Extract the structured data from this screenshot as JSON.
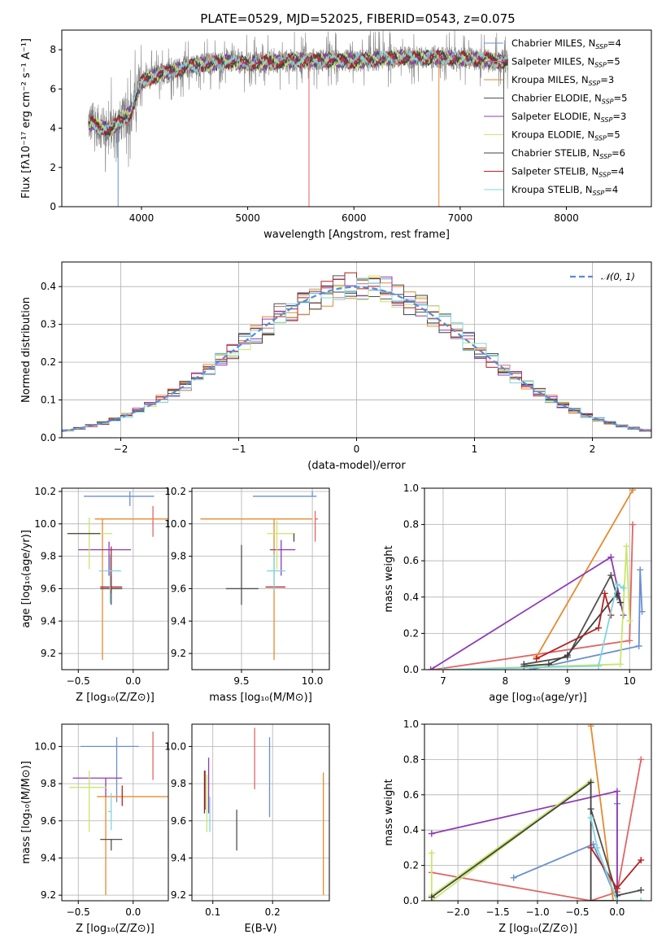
{
  "figure": {
    "title": "PLATE=0529, MJD=52025, FIBERID=0543, z=0.075"
  },
  "legend": [
    {
      "label": "Chabrier MILES, N",
      "sub": "SSP",
      "suffix": "=4",
      "color": "#6b8fd1"
    },
    {
      "label": "Salpeter MILES, N",
      "sub": "SSP",
      "suffix": "=5",
      "color": "#e06666"
    },
    {
      "label": "Kroupa MILES, N",
      "sub": "SSP",
      "suffix": "=3",
      "color": "#e68a2e"
    },
    {
      "label": "Chabrier ELODIE, N",
      "sub": "SSP",
      "suffix": "=5",
      "color": "#505050"
    },
    {
      "label": "Salpeter ELODIE, N",
      "sub": "SSP",
      "suffix": "=3",
      "color": "#8e3bb5"
    },
    {
      "label": "Kroupa ELODIE, N",
      "sub": "SSP",
      "suffix": "=5",
      "color": "#c8e66e"
    },
    {
      "label": "Chabrier STELIB, N",
      "sub": "SSP",
      "suffix": "=6",
      "color": "#404040"
    },
    {
      "label": "Salpeter STELIB, N",
      "sub": "SSP",
      "suffix": "=4",
      "color": "#b22222"
    },
    {
      "label": "Kroupa STELIB, N",
      "sub": "SSP",
      "suffix": "=4",
      "color": "#7fd6e0"
    }
  ],
  "chart_data": [
    {
      "id": "spectrum",
      "type": "line",
      "xlabel": "wavelength [Angstrom, rest frame]",
      "ylabel": "Flux [fλ10⁻¹⁷ erg cm⁻² s⁻¹ A⁻¹]",
      "xlim": [
        3250,
        8800
      ],
      "ylim": [
        0,
        9
      ],
      "xticks": [
        4000,
        5000,
        6000,
        7000,
        8000
      ],
      "yticks": [
        0,
        2,
        4,
        6,
        8
      ],
      "data_range": [
        3500,
        7450
      ],
      "continuum_knots": {
        "x": [
          3500,
          3700,
          3900,
          4000,
          4200,
          4500,
          4800,
          5000,
          5300,
          5600,
          6000,
          6400,
          6800,
          7200,
          7450
        ],
        "y": [
          4.3,
          3.9,
          4.8,
          6.4,
          6.8,
          7.2,
          7.4,
          7.3,
          7.4,
          7.5,
          7.4,
          7.6,
          7.6,
          7.5,
          7.4
        ]
      },
      "spikes": [
        {
          "x": 3780,
          "y": 0
        },
        {
          "x": 5577,
          "y": 0
        },
        {
          "x": 6800,
          "y": 0
        },
        {
          "x": 7410,
          "y": 0
        }
      ],
      "grid": false
    },
    {
      "id": "residual-histogram",
      "type": "step",
      "xlabel": "(data-model)/error",
      "ylabel": "Normed distribution",
      "xlim": [
        -2.5,
        2.5
      ],
      "ylim": [
        0,
        0.465
      ],
      "xticks": [
        -2,
        -1,
        0,
        1,
        2
      ],
      "yticks": [
        0.0,
        0.1,
        0.2,
        0.3,
        0.4
      ],
      "bin_width": 0.1,
      "reference_label": "𝒩(0, 1)",
      "reference_color": "#5b8ad6",
      "grid": true,
      "legend_position": "upper-right"
    },
    {
      "id": "age-vs-Z",
      "type": "errorbar",
      "xlabel": "Z [log₁₀(Z/Z⊙)]",
      "ylabel": "age  [log₁₀(age/yr)]",
      "xlim": [
        -0.65,
        0.32
      ],
      "ylim": [
        9.1,
        10.22
      ],
      "xticks": [
        -0.5,
        0.0
      ],
      "yticks": [
        9.2,
        9.4,
        9.6,
        9.8,
        10.0,
        10.2
      ],
      "points": [
        {
          "series": 0,
          "x": -0.03,
          "y": 10.17,
          "xerr": [
            0.42,
            0.22
          ],
          "yerr": [
            0.06,
            0.03
          ]
        },
        {
          "series": 1,
          "x": 0.18,
          "y": 10.06,
          "xerr": [
            0.0,
            0.0
          ],
          "yerr": [
            0.14,
            0.05
          ]
        },
        {
          "series": 2,
          "x": -0.28,
          "y": 10.03,
          "xerr": [
            0.07,
            0.6
          ],
          "yerr": [
            0.87,
            0.0
          ]
        },
        {
          "series": 3,
          "x": -0.2,
          "y": 9.6,
          "xerr": [
            0.1,
            0.1
          ],
          "yerr": [
            0.1,
            0.08
          ]
        },
        {
          "series": 4,
          "x": -0.22,
          "y": 9.84,
          "xerr": [
            0.28,
            0.2
          ],
          "yerr": [
            0.16,
            0.05
          ]
        },
        {
          "series": 5,
          "x": -0.4,
          "y": 9.94,
          "xerr": [
            0.18,
            0.21
          ],
          "yerr": [
            0.22,
            0.1
          ]
        },
        {
          "series": 6,
          "x": -0.3,
          "y": 9.94,
          "xerr": [
            0.3,
            0.0
          ],
          "yerr": [
            0.0,
            0.0
          ]
        },
        {
          "series": 7,
          "x": -0.2,
          "y": 9.61,
          "xerr": [
            0.1,
            0.1
          ],
          "yerr": [
            0.04,
            0.25
          ]
        },
        {
          "series": 8,
          "x": -0.21,
          "y": 9.71,
          "xerr": [
            0.1,
            0.1
          ],
          "yerr": [
            0.2,
            0.1
          ]
        }
      ],
      "grid": true
    },
    {
      "id": "age-vs-mass",
      "type": "errorbar",
      "xlabel": "mass [log₁₀(M/M⊙)]",
      "ylabel": "",
      "xlim": [
        9.15,
        10.12
      ],
      "ylim": [
        9.1,
        10.22
      ],
      "xticks": [
        9.5,
        10.0
      ],
      "yticks": [
        9.2,
        9.4,
        9.6,
        9.8,
        10.0,
        10.2
      ],
      "points": [
        {
          "series": 0,
          "x": 10.0,
          "y": 10.17,
          "xerr": [
            0.42,
            0.03
          ],
          "yerr": [
            0.0,
            0.03
          ]
        },
        {
          "series": 1,
          "x": 10.02,
          "y": 10.03,
          "xerr": [
            0.0,
            0.02
          ],
          "yerr": [
            0.14,
            0.05
          ]
        },
        {
          "series": 2,
          "x": 9.73,
          "y": 10.03,
          "xerr": [
            0.52,
            0.27
          ],
          "yerr": [
            0.87,
            0.0
          ]
        },
        {
          "series": 3,
          "x": 9.5,
          "y": 9.6,
          "xerr": [
            0.11,
            0.12
          ],
          "yerr": [
            0.1,
            0.27
          ]
        },
        {
          "series": 4,
          "x": 9.78,
          "y": 9.84,
          "xerr": [
            0.08,
            0.1
          ],
          "yerr": [
            0.16,
            0.06
          ]
        },
        {
          "series": 5,
          "x": 9.75,
          "y": 9.94,
          "xerr": [
            0.07,
            0.13
          ],
          "yerr": [
            0.22,
            0.08
          ]
        },
        {
          "series": 6,
          "x": 9.87,
          "y": 9.94,
          "xerr": [
            0.0,
            0.0
          ],
          "yerr": [
            0.05,
            0.0
          ]
        },
        {
          "series": 7,
          "x": 9.73,
          "y": 9.61,
          "xerr": [
            0.06,
            0.08
          ],
          "yerr": [
            0.0,
            0.0
          ]
        },
        {
          "series": 8,
          "x": 9.73,
          "y": 9.71,
          "xerr": [
            0.05,
            0.08
          ],
          "yerr": [
            0.12,
            0.1
          ]
        }
      ],
      "grid": true
    },
    {
      "id": "mass-weight-vs-age",
      "type": "line",
      "xlabel": "age  [log₁₀(age/yr)]",
      "ylabel": "mass weight",
      "xlim": [
        6.7,
        10.35
      ],
      "ylim": [
        0,
        1.0
      ],
      "xticks": [
        7,
        8,
        9,
        10
      ],
      "yticks": [
        0.0,
        0.2,
        0.4,
        0.6,
        0.8,
        1.0
      ],
      "series": [
        {
          "series": 0,
          "x": [
            8.4,
            10.15,
            10.17,
            10.2
          ],
          "y": [
            0.0,
            0.13,
            0.55,
            0.32
          ]
        },
        {
          "series": 1,
          "x": [
            6.85,
            10.0,
            10.05
          ],
          "y": [
            0.0,
            0.16,
            0.8
          ]
        },
        {
          "series": 2,
          "x": [
            8.5,
            10.05
          ],
          "y": [
            0.07,
            0.99
          ]
        },
        {
          "series": 3,
          "x": [
            8.3,
            9.0,
            9.7,
            9.8
          ],
          "y": [
            0.03,
            0.07,
            0.52,
            0.4
          ]
        },
        {
          "series": 4,
          "x": [
            6.8,
            9.7,
            9.9
          ],
          "y": [
            0.0,
            0.62,
            0.3
          ]
        },
        {
          "series": 5,
          "x": [
            7.0,
            9.85,
            9.95,
            10.0
          ],
          "y": [
            0.0,
            0.03,
            0.68,
            0.27
          ]
        },
        {
          "series": 6,
          "x": [
            8.3,
            8.7,
            9.0,
            9.8,
            9.85
          ],
          "y": [
            0.02,
            0.03,
            0.08,
            0.42,
            0.37
          ]
        },
        {
          "series": 7,
          "x": [
            8.5,
            9.5,
            9.6,
            9.7
          ],
          "y": [
            0.06,
            0.23,
            0.42,
            0.3
          ]
        },
        {
          "series": 8,
          "x": [
            7.0,
            9.5,
            9.8,
            9.9
          ],
          "y": [
            0.0,
            0.02,
            0.47,
            0.45
          ]
        }
      ],
      "grid": true
    },
    {
      "id": "mass-vs-Z",
      "type": "errorbar",
      "xlabel": "Z [log₁₀(Z/Z⊙)]",
      "ylabel": "mass [log₁₀(M/M⊙)]",
      "xlim": [
        -0.65,
        0.32
      ],
      "ylim": [
        9.17,
        10.12
      ],
      "xticks": [
        -0.5,
        0.0
      ],
      "yticks": [
        9.2,
        9.4,
        9.6,
        9.8,
        10.0
      ],
      "points": [
        {
          "series": 0,
          "x": -0.15,
          "y": 10.0,
          "xerr": [
            0.33,
            0.2
          ],
          "yerr": [
            0.3,
            0.05
          ]
        },
        {
          "series": 1,
          "x": 0.18,
          "y": 10.02,
          "xerr": [
            0.0,
            0.0
          ],
          "yerr": [
            0.2,
            0.06
          ]
        },
        {
          "series": 2,
          "x": -0.25,
          "y": 9.73,
          "xerr": [
            0.08,
            0.6
          ],
          "yerr": [
            0.53,
            0.0
          ]
        },
        {
          "series": 3,
          "x": -0.2,
          "y": 9.5,
          "xerr": [
            0.1,
            0.1
          ],
          "yerr": [
            0.06,
            0.0
          ]
        },
        {
          "series": 4,
          "x": -0.25,
          "y": 9.83,
          "xerr": [
            0.3,
            0.15
          ],
          "yerr": [
            0.1,
            0.0
          ]
        },
        {
          "series": 5,
          "x": -0.4,
          "y": 9.78,
          "xerr": [
            0.18,
            0.16
          ],
          "yerr": [
            0.24,
            0.09
          ]
        },
        {
          "series": 6,
          "x": -0.2,
          "y": 9.78,
          "xerr": [
            0.0,
            0.0
          ],
          "yerr": [
            0.0,
            0.0
          ]
        },
        {
          "series": 7,
          "x": -0.1,
          "y": 9.73,
          "xerr": [
            0.0,
            0.0
          ],
          "yerr": [
            0.05,
            0.06
          ]
        },
        {
          "series": 8,
          "x": -0.2,
          "y": 9.65,
          "xerr": [
            0.03,
            0.0
          ],
          "yerr": [
            0.1,
            0.1
          ]
        }
      ],
      "grid": true
    },
    {
      "id": "mass-vs-EBV",
      "type": "errorbar",
      "xlabel": "E(B-V)",
      "ylabel": "",
      "xlim": [
        0.065,
        0.295
      ],
      "ylim": [
        9.17,
        10.12
      ],
      "xticks": [
        0.1,
        0.2
      ],
      "yticks": [
        9.2,
        9.4,
        9.6,
        9.8,
        10.0
      ],
      "points": [
        {
          "series": 0,
          "x": 0.195,
          "y": 9.8,
          "xerr": [
            0.0,
            0.0
          ],
          "yerr": [
            0.18,
            0.25
          ]
        },
        {
          "series": 1,
          "x": 0.17,
          "y": 9.9,
          "xerr": [
            0.0,
            0.0
          ],
          "yerr": [
            0.13,
            0.2
          ]
        },
        {
          "series": 2,
          "x": 0.285,
          "y": 9.5,
          "xerr": [
            0.0,
            0.0
          ],
          "yerr": [
            0.3,
            0.36
          ]
        },
        {
          "series": 3,
          "x": 0.14,
          "y": 9.55,
          "xerr": [
            0.0,
            0.0
          ],
          "yerr": [
            0.11,
            0.11
          ]
        },
        {
          "series": 4,
          "x": 0.093,
          "y": 9.82,
          "xerr": [
            0.0,
            0.0
          ],
          "yerr": [
            0.18,
            0.12
          ]
        },
        {
          "series": 5,
          "x": 0.09,
          "y": 9.7,
          "xerr": [
            0.0,
            0.0
          ],
          "yerr": [
            0.16,
            0.15
          ]
        },
        {
          "series": 6,
          "x": 0.086,
          "y": 9.78,
          "xerr": [
            0.0,
            0.0
          ],
          "yerr": [
            0.14,
            0.09
          ]
        },
        {
          "series": 7,
          "x": 0.087,
          "y": 9.73,
          "xerr": [
            0.0,
            0.0
          ],
          "yerr": [
            0.07,
            0.14
          ]
        },
        {
          "series": 8,
          "x": 0.095,
          "y": 9.67,
          "xerr": [
            0.0,
            0.0
          ],
          "yerr": [
            0.13,
            0.06
          ]
        }
      ],
      "grid": true
    },
    {
      "id": "mass-weight-vs-Z",
      "type": "line",
      "xlabel": "Z [log₁₀(Z/Z⊙)]",
      "ylabel": "mass weight",
      "xlim": [
        -2.42,
        0.43
      ],
      "ylim": [
        0,
        1.0
      ],
      "xticks": [
        -2.0,
        -1.5,
        -1.0,
        -0.5,
        0.0
      ],
      "yticks": [
        0.0,
        0.2,
        0.4,
        0.6,
        0.8,
        1.0
      ],
      "series": [
        {
          "series": 0,
          "x": [
            -1.3,
            -0.3,
            0.0,
            0.0,
            0.0
          ],
          "y": [
            0.13,
            0.32,
            0.0,
            0.55,
            0.0
          ]
        },
        {
          "series": 1,
          "x": [
            -2.33,
            -0.33,
            0.0,
            0.3
          ],
          "y": [
            0.16,
            0.0,
            0.05,
            0.8
          ]
        },
        {
          "series": 2,
          "x": [
            -0.33,
            -0.05,
            0.3
          ],
          "y": [
            0.99,
            0.0,
            0.0
          ]
        },
        {
          "series": 3,
          "x": [
            -0.33,
            0.0,
            0.3
          ],
          "y": [
            0.52,
            0.03,
            0.06
          ]
        },
        {
          "series": 4,
          "x": [
            -2.33,
            0.0,
            0.0
          ],
          "y": [
            0.38,
            0.62,
            0.0
          ]
        },
        {
          "series": 5,
          "x": [
            -2.33,
            -2.33,
            -0.33,
            -2.33
          ],
          "y": [
            0.27,
            0.03,
            0.68,
            0.0
          ]
        },
        {
          "series": 6,
          "x": [
            -2.33,
            -0.33,
            -0.33,
            0.0,
            0.0
          ],
          "y": [
            0.02,
            0.67,
            0.0,
            0.0,
            0.03
          ]
        },
        {
          "series": 7,
          "x": [
            -0.33,
            0.0,
            0.3
          ],
          "y": [
            0.3,
            0.07,
            0.23
          ]
        },
        {
          "series": 8,
          "x": [
            -0.33,
            -0.25,
            0.0,
            0.3
          ],
          "y": [
            0.47,
            0.3,
            0.0,
            0.0
          ]
        }
      ],
      "grid": true
    }
  ]
}
